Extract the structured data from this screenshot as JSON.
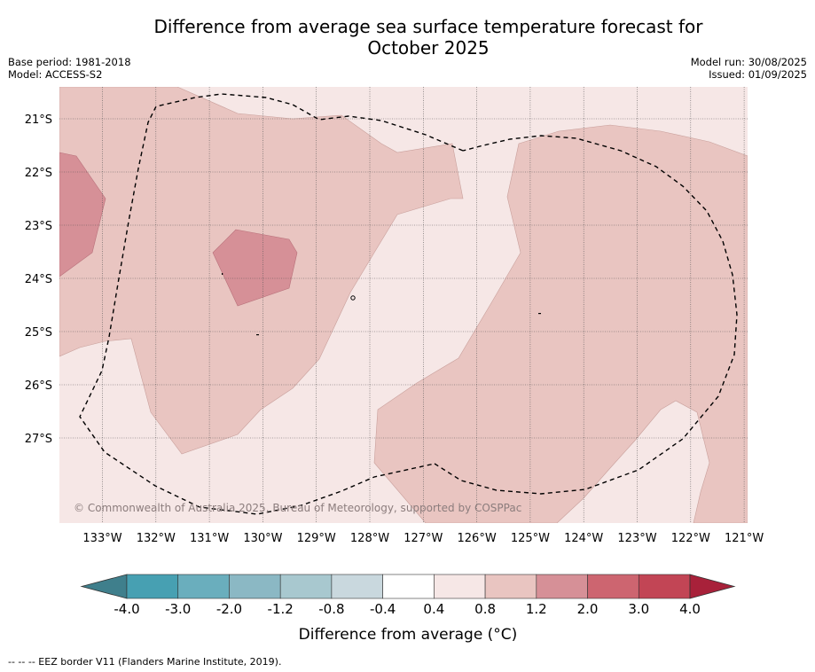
{
  "title_line1": "Difference from average sea surface temperature forecast for",
  "title_line2": "October 2025",
  "base_period": "Base period: 1981-2018",
  "model": "Model: ACCESS-S2",
  "model_run": "Model run: 30/08/2025",
  "issued": "Issued: 01/09/2025",
  "copyright": "© Commonwealth of Australia 2025, Bureau of Meteorology, supported by COSPPac",
  "lat_labels": [
    "21°S",
    "22°S",
    "23°S",
    "24°S",
    "25°S",
    "26°S",
    "27°S"
  ],
  "lon_labels": [
    "133°W",
    "132°W",
    "131°W",
    "130°W",
    "129°W",
    "128°W",
    "127°W",
    "126°W",
    "125°W",
    "124°W",
    "123°W",
    "122°W",
    "121°W"
  ],
  "colorbar": {
    "title": "Difference from average (°C)",
    "ticks": [
      "-4.0",
      "-3.0",
      "-2.0",
      "-1.2",
      "-0.8",
      "-0.4",
      "0.4",
      "0.8",
      "1.2",
      "2.0",
      "3.0",
      "4.0"
    ],
    "colors": [
      "#3f7f8c",
      "#47a0b2",
      "#6aaebd",
      "#8bb8c4",
      "#a8c8cf",
      "#c9d8de",
      "#ffffff",
      "#f6e7e6",
      "#e9c5c1",
      "#d69097",
      "#cd6570",
      "#c24555",
      "#a8213a"
    ]
  },
  "footnote": "--  --  -- EEZ border V11 (Flanders Marine Institute, 2019)."
}
